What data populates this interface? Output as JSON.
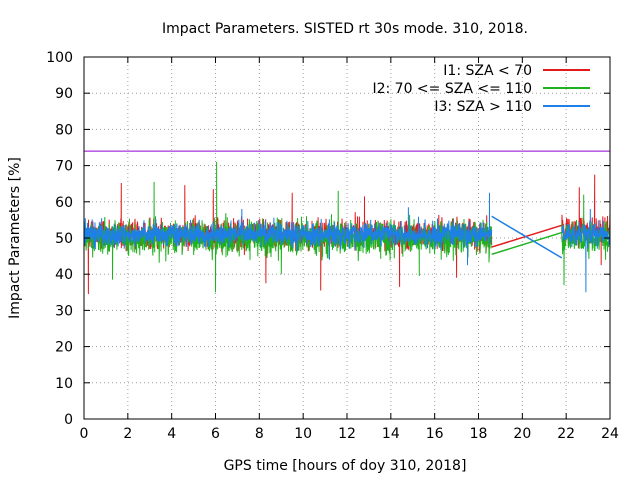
{
  "chart_data": {
    "type": "line",
    "title": "Impact Parameters. SISTED rt 30s mode. 310, 2018.",
    "xlabel": "GPS time [hours of doy 310, 2018]",
    "ylabel": "Impact Parameters [%]",
    "xlim": [
      0,
      24
    ],
    "ylim": [
      0,
      100
    ],
    "xticks": [
      0,
      2,
      4,
      6,
      8,
      10,
      12,
      14,
      16,
      18,
      20,
      22,
      24
    ],
    "yticks": [
      0,
      10,
      20,
      30,
      40,
      50,
      60,
      70,
      80,
      90,
      100
    ],
    "grid": true,
    "legend_position": "top-right",
    "reference_line": {
      "y": 74,
      "color": "#9400d3"
    },
    "series": [
      {
        "name": "I1: SZA < 70",
        "color": "#e31a1c",
        "segments": [
          {
            "x_start": 0,
            "x_end": 18.6,
            "center": 51,
            "spread": 6,
            "outliers": [
              [
                0.2,
                34.5
              ],
              [
                1.7,
                65.2
              ],
              [
                4.6,
                64.6
              ],
              [
                5.9,
                63.5
              ],
              [
                8.3,
                37.5
              ],
              [
                9.5,
                62.5
              ],
              [
                10.8,
                35.5
              ],
              [
                12.8,
                61.5
              ],
              [
                14.4,
                36.5
              ],
              [
                17.0,
                39.0
              ]
            ]
          },
          {
            "x_start": 21.8,
            "x_end": 24,
            "center": 52,
            "spread": 6,
            "outliers": [
              [
                22.6,
                64.0
              ],
              [
                23.3,
                67.5
              ],
              [
                23.6,
                42.5
              ]
            ]
          }
        ],
        "gap_line": [
          [
            18.6,
            47.5
          ],
          [
            21.8,
            53.5
          ]
        ]
      },
      {
        "name": "I2: 70 <= SZA <= 110",
        "color": "#1fb21f",
        "segments": [
          {
            "x_start": 0,
            "x_end": 18.6,
            "center": 50,
            "spread": 7,
            "outliers": [
              [
                6.05,
                71.0
              ],
              [
                6.0,
                35.0
              ],
              [
                3.2,
                65.5
              ],
              [
                1.3,
                38.5
              ],
              [
                9.0,
                40.0
              ],
              [
                11.6,
                63.0
              ],
              [
                15.3,
                39.5
              ]
            ]
          },
          {
            "x_start": 21.8,
            "x_end": 24,
            "center": 50,
            "spread": 6,
            "outliers": [
              [
                21.9,
                37.0
              ],
              [
                22.8,
                62.0
              ],
              [
                23.8,
                44.0
              ]
            ]
          }
        ],
        "gap_line": [
          [
            18.6,
            45.5
          ],
          [
            21.8,
            51.5
          ]
        ]
      },
      {
        "name": "I3: SZA > 110",
        "color": "#1e7fe6",
        "segments": [
          {
            "x_start": 0,
            "x_end": 18.6,
            "center": 51,
            "spread": 5,
            "outliers": [
              [
                14.8,
                58.5
              ],
              [
                17.5,
                42.5
              ],
              [
                18.5,
                62.5
              ],
              [
                7.2,
                58.0
              ],
              [
                11.2,
                44.0
              ]
            ]
          },
          {
            "x_start": 21.8,
            "x_end": 24,
            "center": 51,
            "spread": 5,
            "outliers": [
              [
                22.9,
                35.0
              ],
              [
                23.1,
                58.0
              ],
              [
                24.0,
                45.0
              ]
            ]
          }
        ],
        "gap_line": [
          [
            18.6,
            56.0
          ],
          [
            21.8,
            44.5
          ]
        ]
      }
    ]
  }
}
